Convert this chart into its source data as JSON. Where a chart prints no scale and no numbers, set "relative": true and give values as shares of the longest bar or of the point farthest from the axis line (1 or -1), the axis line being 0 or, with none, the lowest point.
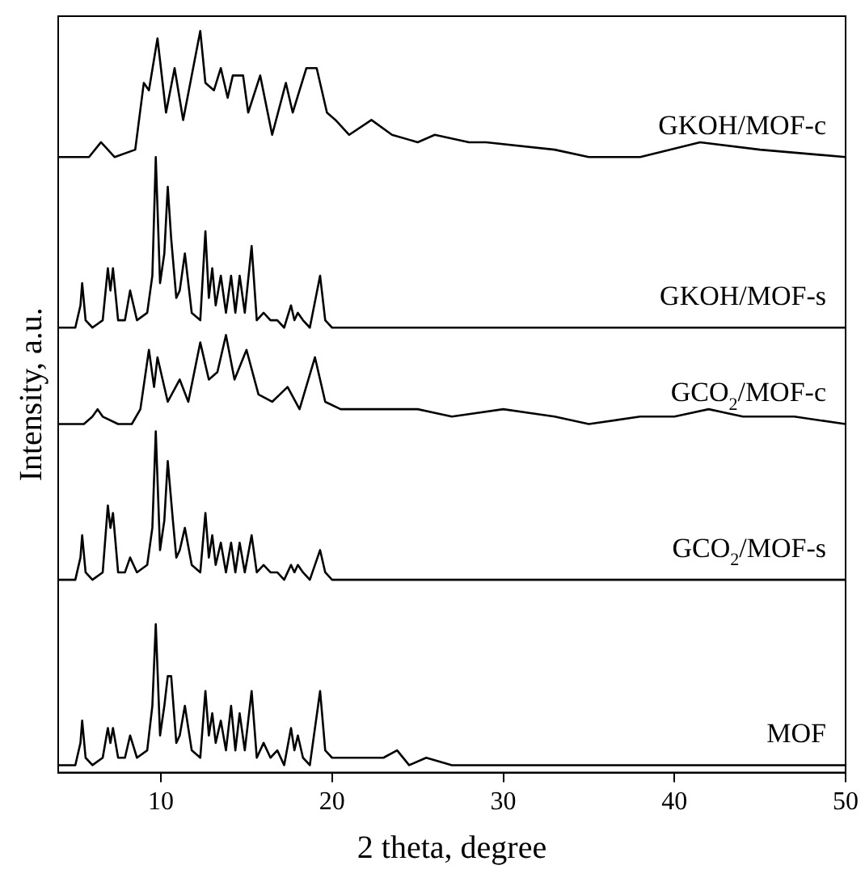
{
  "chart_data": {
    "type": "line",
    "xlabel": "2 theta, degree",
    "ylabel": "Intensity, a.u.",
    "relative": true,
    "xlim": [
      4,
      50
    ],
    "xticks": [
      10,
      20,
      30,
      40,
      50
    ],
    "tick_labels": "x",
    "grid": false,
    "legend": false,
    "marker": "none",
    "line_style": "solid",
    "series": [
      {
        "name": "MOF",
        "color": "#000000",
        "x": [
          4,
          5.0,
          5.3,
          5.4,
          5.6,
          6.0,
          6.6,
          6.9,
          7.05,
          7.2,
          7.5,
          7.9,
          8.2,
          8.6,
          9.2,
          9.5,
          9.7,
          9.95,
          10.2,
          10.4,
          10.6,
          10.9,
          11.1,
          11.4,
          11.8,
          12.3,
          12.6,
          12.8,
          13.0,
          13.2,
          13.5,
          13.8,
          14.1,
          14.35,
          14.6,
          14.9,
          15.3,
          15.6,
          16.0,
          16.4,
          16.8,
          17.2,
          17.6,
          17.8,
          18.0,
          18.3,
          18.7,
          19.3,
          19.6,
          20.0,
          20.5,
          21,
          22,
          23,
          23.8,
          24.5,
          25.5,
          27,
          30,
          35,
          40,
          45,
          50
        ],
        "values": [
          0.01,
          0.01,
          0.04,
          0.07,
          0.02,
          0.01,
          0.02,
          0.06,
          0.04,
          0.06,
          0.02,
          0.02,
          0.05,
          0.02,
          0.03,
          0.09,
          0.2,
          0.05,
          0.09,
          0.13,
          0.13,
          0.04,
          0.05,
          0.09,
          0.03,
          0.02,
          0.11,
          0.05,
          0.08,
          0.04,
          0.07,
          0.03,
          0.09,
          0.03,
          0.08,
          0.03,
          0.11,
          0.02,
          0.04,
          0.02,
          0.03,
          0.01,
          0.06,
          0.03,
          0.05,
          0.02,
          0.01,
          0.11,
          0.03,
          0.02,
          0.02,
          0.02,
          0.02,
          0.02,
          0.03,
          0.01,
          0.02,
          0.01,
          0.01,
          0.01,
          0.01,
          0.01,
          0.01
        ]
      },
      {
        "name": "GCO$_{2}$/MOF-s",
        "color": "#000000",
        "x": [
          4,
          5.0,
          5.3,
          5.4,
          5.6,
          6.0,
          6.6,
          6.9,
          7.05,
          7.2,
          7.5,
          7.9,
          8.2,
          8.6,
          9.2,
          9.5,
          9.7,
          9.95,
          10.2,
          10.4,
          10.7,
          10.9,
          11.1,
          11.4,
          11.8,
          12.3,
          12.6,
          12.8,
          13.0,
          13.2,
          13.5,
          13.8,
          14.1,
          14.35,
          14.6,
          14.9,
          15.3,
          15.6,
          16.0,
          16.4,
          16.8,
          17.2,
          17.6,
          17.8,
          18.0,
          18.3,
          18.7,
          19.3,
          19.6,
          20.0,
          21,
          23,
          25,
          30,
          35,
          40,
          45,
          50
        ],
        "values": [
          0.26,
          0.26,
          0.29,
          0.32,
          0.27,
          0.26,
          0.27,
          0.36,
          0.33,
          0.35,
          0.27,
          0.27,
          0.29,
          0.27,
          0.28,
          0.33,
          0.46,
          0.3,
          0.34,
          0.42,
          0.34,
          0.29,
          0.3,
          0.33,
          0.28,
          0.27,
          0.35,
          0.29,
          0.32,
          0.28,
          0.31,
          0.27,
          0.31,
          0.27,
          0.31,
          0.27,
          0.32,
          0.27,
          0.28,
          0.27,
          0.27,
          0.26,
          0.28,
          0.27,
          0.28,
          0.27,
          0.26,
          0.3,
          0.27,
          0.26,
          0.26,
          0.26,
          0.26,
          0.26,
          0.26,
          0.26,
          0.26,
          0.26
        ]
      },
      {
        "name": "GCO$_{2}$/MOF-c",
        "color": "#000000",
        "x": [
          4,
          5.5,
          6.0,
          6.3,
          6.6,
          7.5,
          8.3,
          8.8,
          9.3,
          9.6,
          9.8,
          10.4,
          11.1,
          11.6,
          12.3,
          12.8,
          13.3,
          13.8,
          14.3,
          15.0,
          15.7,
          16.5,
          17.4,
          18.1,
          19.0,
          19.6,
          20.5,
          23,
          25,
          27,
          30,
          33,
          35,
          38,
          40,
          42,
          44,
          47,
          50
        ],
        "values": [
          0.47,
          0.47,
          0.48,
          0.49,
          0.48,
          0.47,
          0.47,
          0.49,
          0.57,
          0.52,
          0.56,
          0.5,
          0.53,
          0.5,
          0.58,
          0.53,
          0.54,
          0.59,
          0.53,
          0.57,
          0.51,
          0.5,
          0.52,
          0.49,
          0.56,
          0.5,
          0.49,
          0.49,
          0.49,
          0.48,
          0.49,
          0.48,
          0.47,
          0.48,
          0.48,
          0.49,
          0.48,
          0.48,
          0.47
        ]
      },
      {
        "name": "GKOH/MOF-s",
        "color": "#000000",
        "x": [
          4,
          5.0,
          5.3,
          5.4,
          5.6,
          6.0,
          6.6,
          6.9,
          7.05,
          7.2,
          7.5,
          7.9,
          8.2,
          8.6,
          9.2,
          9.5,
          9.7,
          9.95,
          10.2,
          10.4,
          10.6,
          10.9,
          11.1,
          11.4,
          11.8,
          12.3,
          12.6,
          12.8,
          13.0,
          13.2,
          13.5,
          13.8,
          14.1,
          14.35,
          14.6,
          14.9,
          15.3,
          15.6,
          16.0,
          16.4,
          16.8,
          17.2,
          17.6,
          17.8,
          18.0,
          18.3,
          18.7,
          19.3,
          19.6,
          20.0,
          21,
          23,
          25,
          30,
          35,
          40,
          45,
          50
        ],
        "values": [
          0.6,
          0.6,
          0.63,
          0.66,
          0.61,
          0.6,
          0.61,
          0.68,
          0.65,
          0.68,
          0.61,
          0.61,
          0.65,
          0.61,
          0.62,
          0.67,
          0.83,
          0.66,
          0.7,
          0.79,
          0.72,
          0.64,
          0.65,
          0.7,
          0.62,
          0.61,
          0.73,
          0.64,
          0.68,
          0.63,
          0.67,
          0.62,
          0.67,
          0.62,
          0.67,
          0.62,
          0.71,
          0.61,
          0.62,
          0.61,
          0.61,
          0.6,
          0.63,
          0.61,
          0.62,
          0.61,
          0.6,
          0.67,
          0.61,
          0.6,
          0.6,
          0.6,
          0.6,
          0.6,
          0.6,
          0.6,
          0.6,
          0.6
        ]
      },
      {
        "name": "GKOH/MOF-c",
        "color": "#000000",
        "x": [
          4,
          5.8,
          6.5,
          7.3,
          8.5,
          9.0,
          9.3,
          9.8,
          10.3,
          10.8,
          11.3,
          12.3,
          12.6,
          13.1,
          13.5,
          13.9,
          14.2,
          14.8,
          15.1,
          15.8,
          16.5,
          17.3,
          17.7,
          18.5,
          19.1,
          19.7,
          20.2,
          21,
          22.3,
          23.5,
          25,
          26,
          28,
          29,
          33,
          35,
          38,
          41.5,
          45,
          50
        ],
        "values": [
          0.83,
          0.83,
          0.85,
          0.83,
          0.84,
          0.93,
          0.92,
          0.99,
          0.89,
          0.95,
          0.88,
          1.0,
          0.93,
          0.92,
          0.95,
          0.91,
          0.94,
          0.94,
          0.89,
          0.94,
          0.86,
          0.93,
          0.89,
          0.95,
          0.95,
          0.89,
          0.88,
          0.86,
          0.88,
          0.86,
          0.85,
          0.86,
          0.85,
          0.85,
          0.84,
          0.83,
          0.83,
          0.85,
          0.84,
          0.83
        ]
      }
    ]
  }
}
